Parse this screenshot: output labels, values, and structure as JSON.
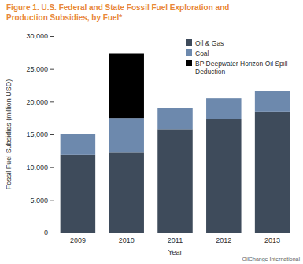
{
  "chart_data": {
    "type": "bar",
    "stacked": true,
    "title": "Figure 1. U.S. Federal and State Fossil Fuel Exploration and Production Subsidies, by Fuel*",
    "x_label": "Year",
    "y_label": "Fossil Fuel Subsidies (million USD)",
    "categories": [
      "2009",
      "2010",
      "2011",
      "2012",
      "2013"
    ],
    "series": [
      {
        "name": "Oil & Gas",
        "color": "#3e4b5b",
        "values": [
          11900,
          12200,
          15800,
          17300,
          18500
        ]
      },
      {
        "name": "Coal",
        "color": "#6d89ad",
        "values": [
          3200,
          5300,
          3200,
          3200,
          3100
        ]
      },
      {
        "name": "BP Deepwater Horizon Oil Spill Deduction",
        "color": "#000000",
        "values": [
          null,
          9800,
          null,
          null,
          null
        ]
      }
    ],
    "ylim": [
      0,
      30000
    ],
    "yticks": [
      0,
      {
        "value": 5000,
        "label": "5,000"
      },
      {
        "value": 10000,
        "label": "10,000"
      },
      {
        "value": 15000,
        "label": "15,000"
      },
      {
        "value": 20000,
        "label": "20,000"
      },
      {
        "value": 25000,
        "label": "25,000"
      },
      {
        "value": 30000,
        "label": "30,000"
      }
    ],
    "grid": false,
    "legend": "upper right",
    "source": "OilChange International"
  }
}
